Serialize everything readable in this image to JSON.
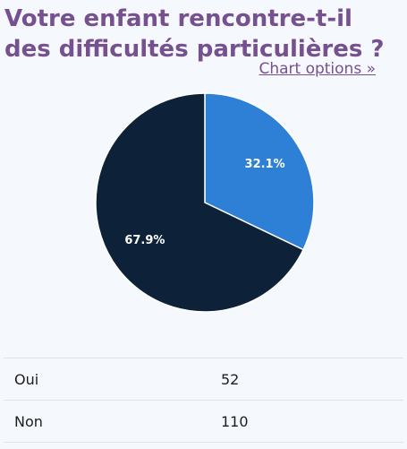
{
  "title_lines": [
    "Votre enfant rencontre-t-il",
    "des difficultés particulières ?"
  ],
  "chart_options_label": "Chart options »",
  "colors": {
    "title": "#76508f",
    "oui": "#2e7fd6",
    "non": "#0d2239"
  },
  "chart_data": {
    "type": "pie",
    "title": "Votre enfant rencontre-t-il des difficultés particulières ?",
    "slices": [
      {
        "label": "Oui",
        "value": 52,
        "percent_label": "32.1%",
        "color": "#2e7fd6"
      },
      {
        "label": "Non",
        "value": 110,
        "percent_label": "67.9%",
        "color": "#0d2239"
      }
    ]
  },
  "table": {
    "rows": [
      {
        "label": "Oui",
        "value": "52"
      },
      {
        "label": "Non",
        "value": "110"
      }
    ]
  }
}
